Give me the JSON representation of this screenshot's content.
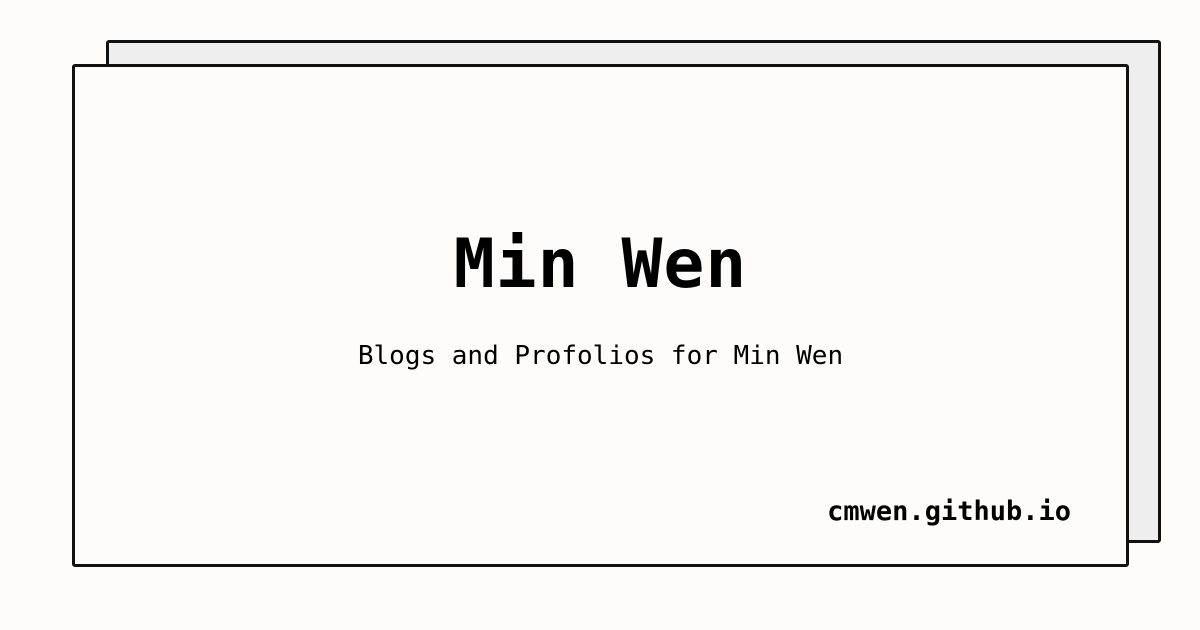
{
  "card": {
    "title": "Min Wen",
    "subtitle": "Blogs and Profolios for Min Wen",
    "url": "cmwen.github.io"
  },
  "colors": {
    "background": "#fdfcfa",
    "back_card": "#eeeeee",
    "border": "#111111",
    "text": "#000000"
  }
}
